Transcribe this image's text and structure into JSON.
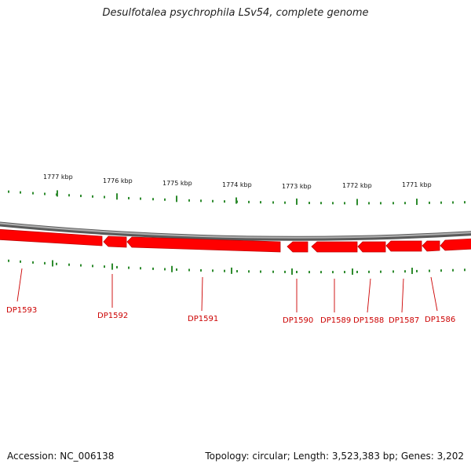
{
  "title": "Desulfotalea psychrophila LSv54, complete genome",
  "footer": {
    "accession": "Accession: NC_006138",
    "topology": "Topology: circular; Length: 3,523,383 bp; Genes: 3,202"
  },
  "kbp_labels": [
    "1777 kbp",
    "1776 kbp",
    "1775 kbp",
    "1774 kbp",
    "1773 kbp",
    "1772 kbp",
    "1771 kbp"
  ],
  "genes": [
    "DP1593",
    "DP1592",
    "DP1591",
    "DP1590",
    "DP1589",
    "DP1588",
    "DP1587",
    "DP1586"
  ],
  "colors": {
    "gene": "#ff0000",
    "gene_dark": "#d40000",
    "tick": "#2e8b2e",
    "backbone": "#808080",
    "label": "#cc0000"
  }
}
